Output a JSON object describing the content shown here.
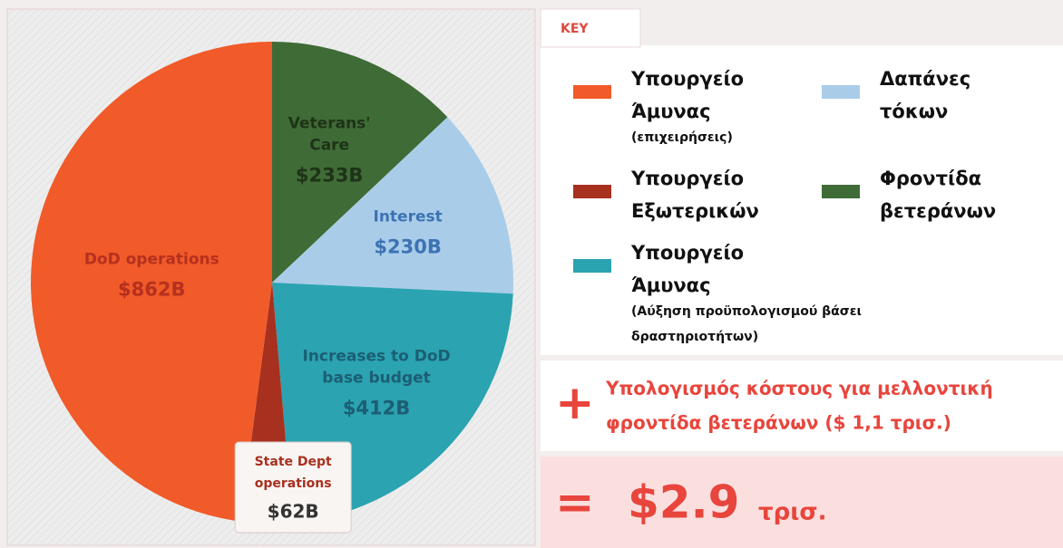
{
  "chart_data": {
    "type": "pie",
    "categories": [
      [
        "Veterans'",
        "Care"
      ],
      [
        "Interest"
      ],
      [
        "Increases to DoD",
        "base budget"
      ],
      [
        "State Dept",
        "operations"
      ],
      [
        "DoD operations"
      ]
    ],
    "values": [
      233,
      230,
      412,
      62,
      862
    ],
    "value_labels": [
      "$233B",
      "$230B",
      "$412B",
      "$62B",
      "$862B"
    ],
    "colors": [
      "#3f6b36",
      "#a9cde9",
      "#2ba3b1",
      "#a8301f",
      "#f15a29"
    ],
    "label_colors": [
      "#1e3318",
      "#3d72b3",
      "#1c5e73",
      "#a8301f",
      "#b5301e"
    ],
    "key_title": "KEY",
    "legend": [
      {
        "label": [
          "Υπουργείο",
          "Άμυνας"
        ],
        "note": [
          "(επιχειρήσεις)"
        ],
        "color": "#f15a29"
      },
      {
        "label": [
          "Δαπάνες",
          "τόκων"
        ],
        "color": "#a9cde9"
      },
      {
        "label": [
          "Υπουργείο",
          "Εξωτερικών"
        ],
        "color": "#a8301f"
      },
      {
        "label": [
          "Φροντίδα",
          "βετεράνων"
        ],
        "color": "#3f6b36"
      },
      {
        "label": [
          "Υπουργείο",
          "Άμυνας"
        ],
        "note": [
          "(Αύξηση προϋπολογισμού βάσει",
          "δραστηριοτήτων)"
        ],
        "color": "#2ba3b1"
      }
    ],
    "addition": {
      "symbol": "+",
      "text": [
        "Υπολογισμός κόστους για μελλοντική",
        "φροντίδα βετεράνων ($ 1,1 τρισ.)"
      ]
    },
    "total": {
      "symbol": "=",
      "amount": "$2.9",
      "unit": "τρισ."
    }
  }
}
